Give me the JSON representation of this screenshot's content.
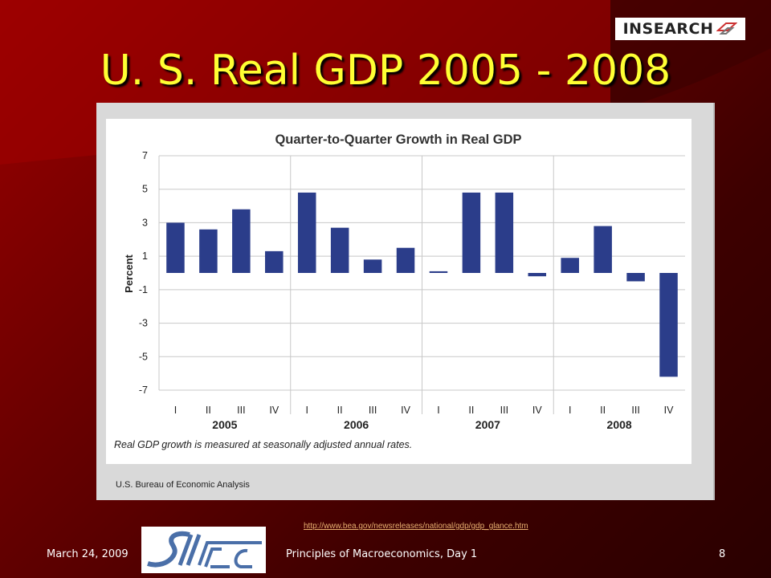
{
  "slide": {
    "title": "U. S. Real GDP 2005 - 2008",
    "logo_text": "INSEARCH",
    "link": "http://www.bea.gov/newsreleases/national/gdp/gdp_glance.htm",
    "footer_date": "March 24, 2009",
    "footer_course": "Principles of Macroeconomics, Day 1",
    "page_number": "8",
    "title_color": "#ffff33",
    "bar_color": "#2b3d8a"
  },
  "chart_data": {
    "type": "bar",
    "title": "Quarter-to-Quarter Growth in Real GDP",
    "ylabel": "Percent",
    "ylim": [
      -7,
      7
    ],
    "yticks": [
      7,
      5,
      3,
      1,
      -1,
      -3,
      -5,
      -7
    ],
    "grid": true,
    "categories": [
      "I",
      "II",
      "III",
      "IV",
      "I",
      "II",
      "III",
      "IV",
      "I",
      "II",
      "III",
      "IV",
      "I",
      "II",
      "III",
      "IV"
    ],
    "years": [
      "2005",
      "2006",
      "2007",
      "2008"
    ],
    "values": [
      3.0,
      2.6,
      3.8,
      1.3,
      4.8,
      2.7,
      0.8,
      1.5,
      0.1,
      4.8,
      4.8,
      -0.2,
      0.9,
      2.8,
      -0.5,
      -6.2
    ],
    "note": "Real GDP growth is measured at seasonally adjusted annual rates.",
    "source": "U.S. Bureau of Economic Analysis"
  }
}
